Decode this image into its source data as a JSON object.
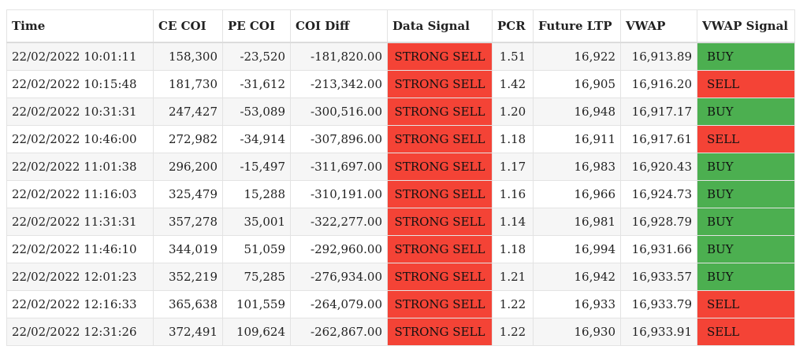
{
  "table": {
    "headers": [
      "Time",
      "CE COI",
      "PE COI",
      "COI Diff",
      "Data Signal",
      "PCR",
      "Future LTP",
      "VWAP",
      "VWAP Signal"
    ],
    "colors": {
      "sell": "#f44336",
      "buy": "#4caf50"
    },
    "rows": [
      [
        "22/02/2022 10:01:11",
        "158,300",
        "-23,520",
        "-181,820.00",
        "STRONG SELL",
        "1.51",
        "16,922",
        "16,913.89",
        "BUY"
      ],
      [
        "22/02/2022 10:15:48",
        "181,730",
        "-31,612",
        "-213,342.00",
        "STRONG SELL",
        "1.42",
        "16,905",
        "16,916.20",
        "SELL"
      ],
      [
        "22/02/2022 10:31:31",
        "247,427",
        "-53,089",
        "-300,516.00",
        "STRONG SELL",
        "1.20",
        "16,948",
        "16,917.17",
        "BUY"
      ],
      [
        "22/02/2022 10:46:00",
        "272,982",
        "-34,914",
        "-307,896.00",
        "STRONG SELL",
        "1.18",
        "16,911",
        "16,917.61",
        "SELL"
      ],
      [
        "22/02/2022 11:01:38",
        "296,200",
        "-15,497",
        "-311,697.00",
        "STRONG SELL",
        "1.17",
        "16,983",
        "16,920.43",
        "BUY"
      ],
      [
        "22/02/2022 11:16:03",
        "325,479",
        "15,288",
        "-310,191.00",
        "STRONG SELL",
        "1.16",
        "16,966",
        "16,924.73",
        "BUY"
      ],
      [
        "22/02/2022 11:31:31",
        "357,278",
        "35,001",
        "-322,277.00",
        "STRONG SELL",
        "1.14",
        "16,981",
        "16,928.79",
        "BUY"
      ],
      [
        "22/02/2022 11:46:10",
        "344,019",
        "51,059",
        "-292,960.00",
        "STRONG SELL",
        "1.18",
        "16,994",
        "16,931.66",
        "BUY"
      ],
      [
        "22/02/2022 12:01:23",
        "352,219",
        "75,285",
        "-276,934.00",
        "STRONG SELL",
        "1.21",
        "16,942",
        "16,933.57",
        "BUY"
      ],
      [
        "22/02/2022 12:16:33",
        "365,638",
        "101,559",
        "-264,079.00",
        "STRONG SELL",
        "1.22",
        "16,933",
        "16,933.79",
        "SELL"
      ],
      [
        "22/02/2022 12:31:26",
        "372,491",
        "109,624",
        "-262,867.00",
        "STRONG SELL",
        "1.22",
        "16,930",
        "16,933.91",
        "SELL"
      ]
    ]
  }
}
